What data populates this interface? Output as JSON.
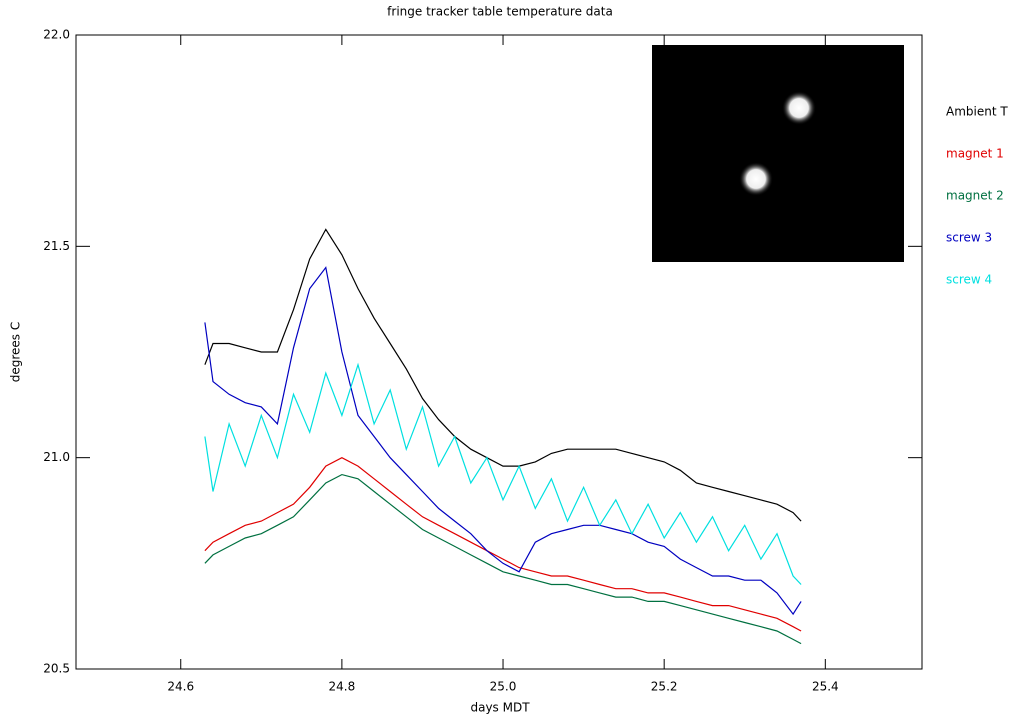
{
  "chart_data": {
    "type": "line",
    "title": "fringe tracker table temperature data",
    "x_label": "days MDT",
    "y_label": "degrees C",
    "x": [
      24.63,
      24.64,
      24.66,
      24.68,
      24.7,
      24.72,
      24.74,
      24.76,
      24.78,
      24.8,
      24.82,
      24.84,
      24.86,
      24.88,
      24.9,
      24.92,
      24.94,
      24.96,
      24.98,
      25.0,
      25.02,
      25.04,
      25.06,
      25.08,
      25.1,
      25.12,
      25.14,
      25.16,
      25.18,
      25.2,
      25.22,
      25.24,
      25.26,
      25.28,
      25.3,
      25.32,
      25.34,
      25.36,
      25.37
    ],
    "series": [
      {
        "name": "Ambient T",
        "color": "#000000",
        "values": [
          21.22,
          21.27,
          21.27,
          21.26,
          21.25,
          21.25,
          21.35,
          21.47,
          21.54,
          21.48,
          21.4,
          21.33,
          21.27,
          21.21,
          21.14,
          21.09,
          21.05,
          21.02,
          21.0,
          20.98,
          20.98,
          20.99,
          21.01,
          21.02,
          21.02,
          21.02,
          21.02,
          21.01,
          21.0,
          20.99,
          20.97,
          20.94,
          20.93,
          20.92,
          20.91,
          20.9,
          20.89,
          20.87,
          20.85
        ]
      },
      {
        "name": "magnet 1",
        "color": "#e00000",
        "values": [
          20.78,
          20.8,
          20.82,
          20.84,
          20.85,
          20.87,
          20.89,
          20.93,
          20.98,
          21.0,
          20.98,
          20.95,
          20.92,
          20.89,
          20.86,
          20.84,
          20.82,
          20.8,
          20.78,
          20.76,
          20.74,
          20.73,
          20.72,
          20.72,
          20.71,
          20.7,
          20.69,
          20.69,
          20.68,
          20.68,
          20.67,
          20.66,
          20.65,
          20.65,
          20.64,
          20.63,
          20.62,
          20.6,
          20.59
        ]
      },
      {
        "name": "magnet 2",
        "color": "#007040",
        "values": [
          20.75,
          20.77,
          20.79,
          20.81,
          20.82,
          20.84,
          20.86,
          20.9,
          20.94,
          20.96,
          20.95,
          20.92,
          20.89,
          20.86,
          20.83,
          20.81,
          20.79,
          20.77,
          20.75,
          20.73,
          20.72,
          20.71,
          20.7,
          20.7,
          20.69,
          20.68,
          20.67,
          20.67,
          20.66,
          20.66,
          20.65,
          20.64,
          20.63,
          20.62,
          20.61,
          20.6,
          20.59,
          20.57,
          20.56
        ]
      },
      {
        "name": "screw 3",
        "color": "#0000c0",
        "values": [
          21.32,
          21.18,
          21.15,
          21.13,
          21.12,
          21.08,
          21.26,
          21.4,
          21.45,
          21.25,
          21.1,
          21.05,
          21.0,
          20.96,
          20.92,
          20.88,
          20.85,
          20.82,
          20.78,
          20.75,
          20.73,
          20.8,
          20.82,
          20.83,
          20.84,
          20.84,
          20.83,
          20.82,
          20.8,
          20.79,
          20.76,
          20.74,
          20.72,
          20.72,
          20.71,
          20.71,
          20.68,
          20.63,
          20.66
        ]
      },
      {
        "name": "screw 4",
        "color": "#00e0e0",
        "values": [
          21.05,
          20.92,
          21.08,
          20.98,
          21.1,
          21.0,
          21.15,
          21.06,
          21.2,
          21.1,
          21.22,
          21.08,
          21.16,
          21.02,
          21.12,
          20.98,
          21.05,
          20.94,
          21.0,
          20.9,
          20.98,
          20.88,
          20.95,
          20.85,
          20.93,
          20.84,
          20.9,
          20.82,
          20.89,
          20.81,
          20.87,
          20.8,
          20.86,
          20.78,
          20.84,
          20.76,
          20.82,
          20.72,
          20.7
        ]
      }
    ],
    "xlim": [
      24.47,
      25.52
    ],
    "ylim": [
      20.5,
      22.0
    ],
    "xticks": [
      24.6,
      24.8,
      {
        "value": 25,
        "label": "25.0"
      },
      25.2,
      25.4
    ],
    "yticks": [
      20.5,
      {
        "value": 21,
        "label": "21.0"
      },
      21.5,
      {
        "value": 22,
        "label": "22.0"
      }
    ]
  }
}
